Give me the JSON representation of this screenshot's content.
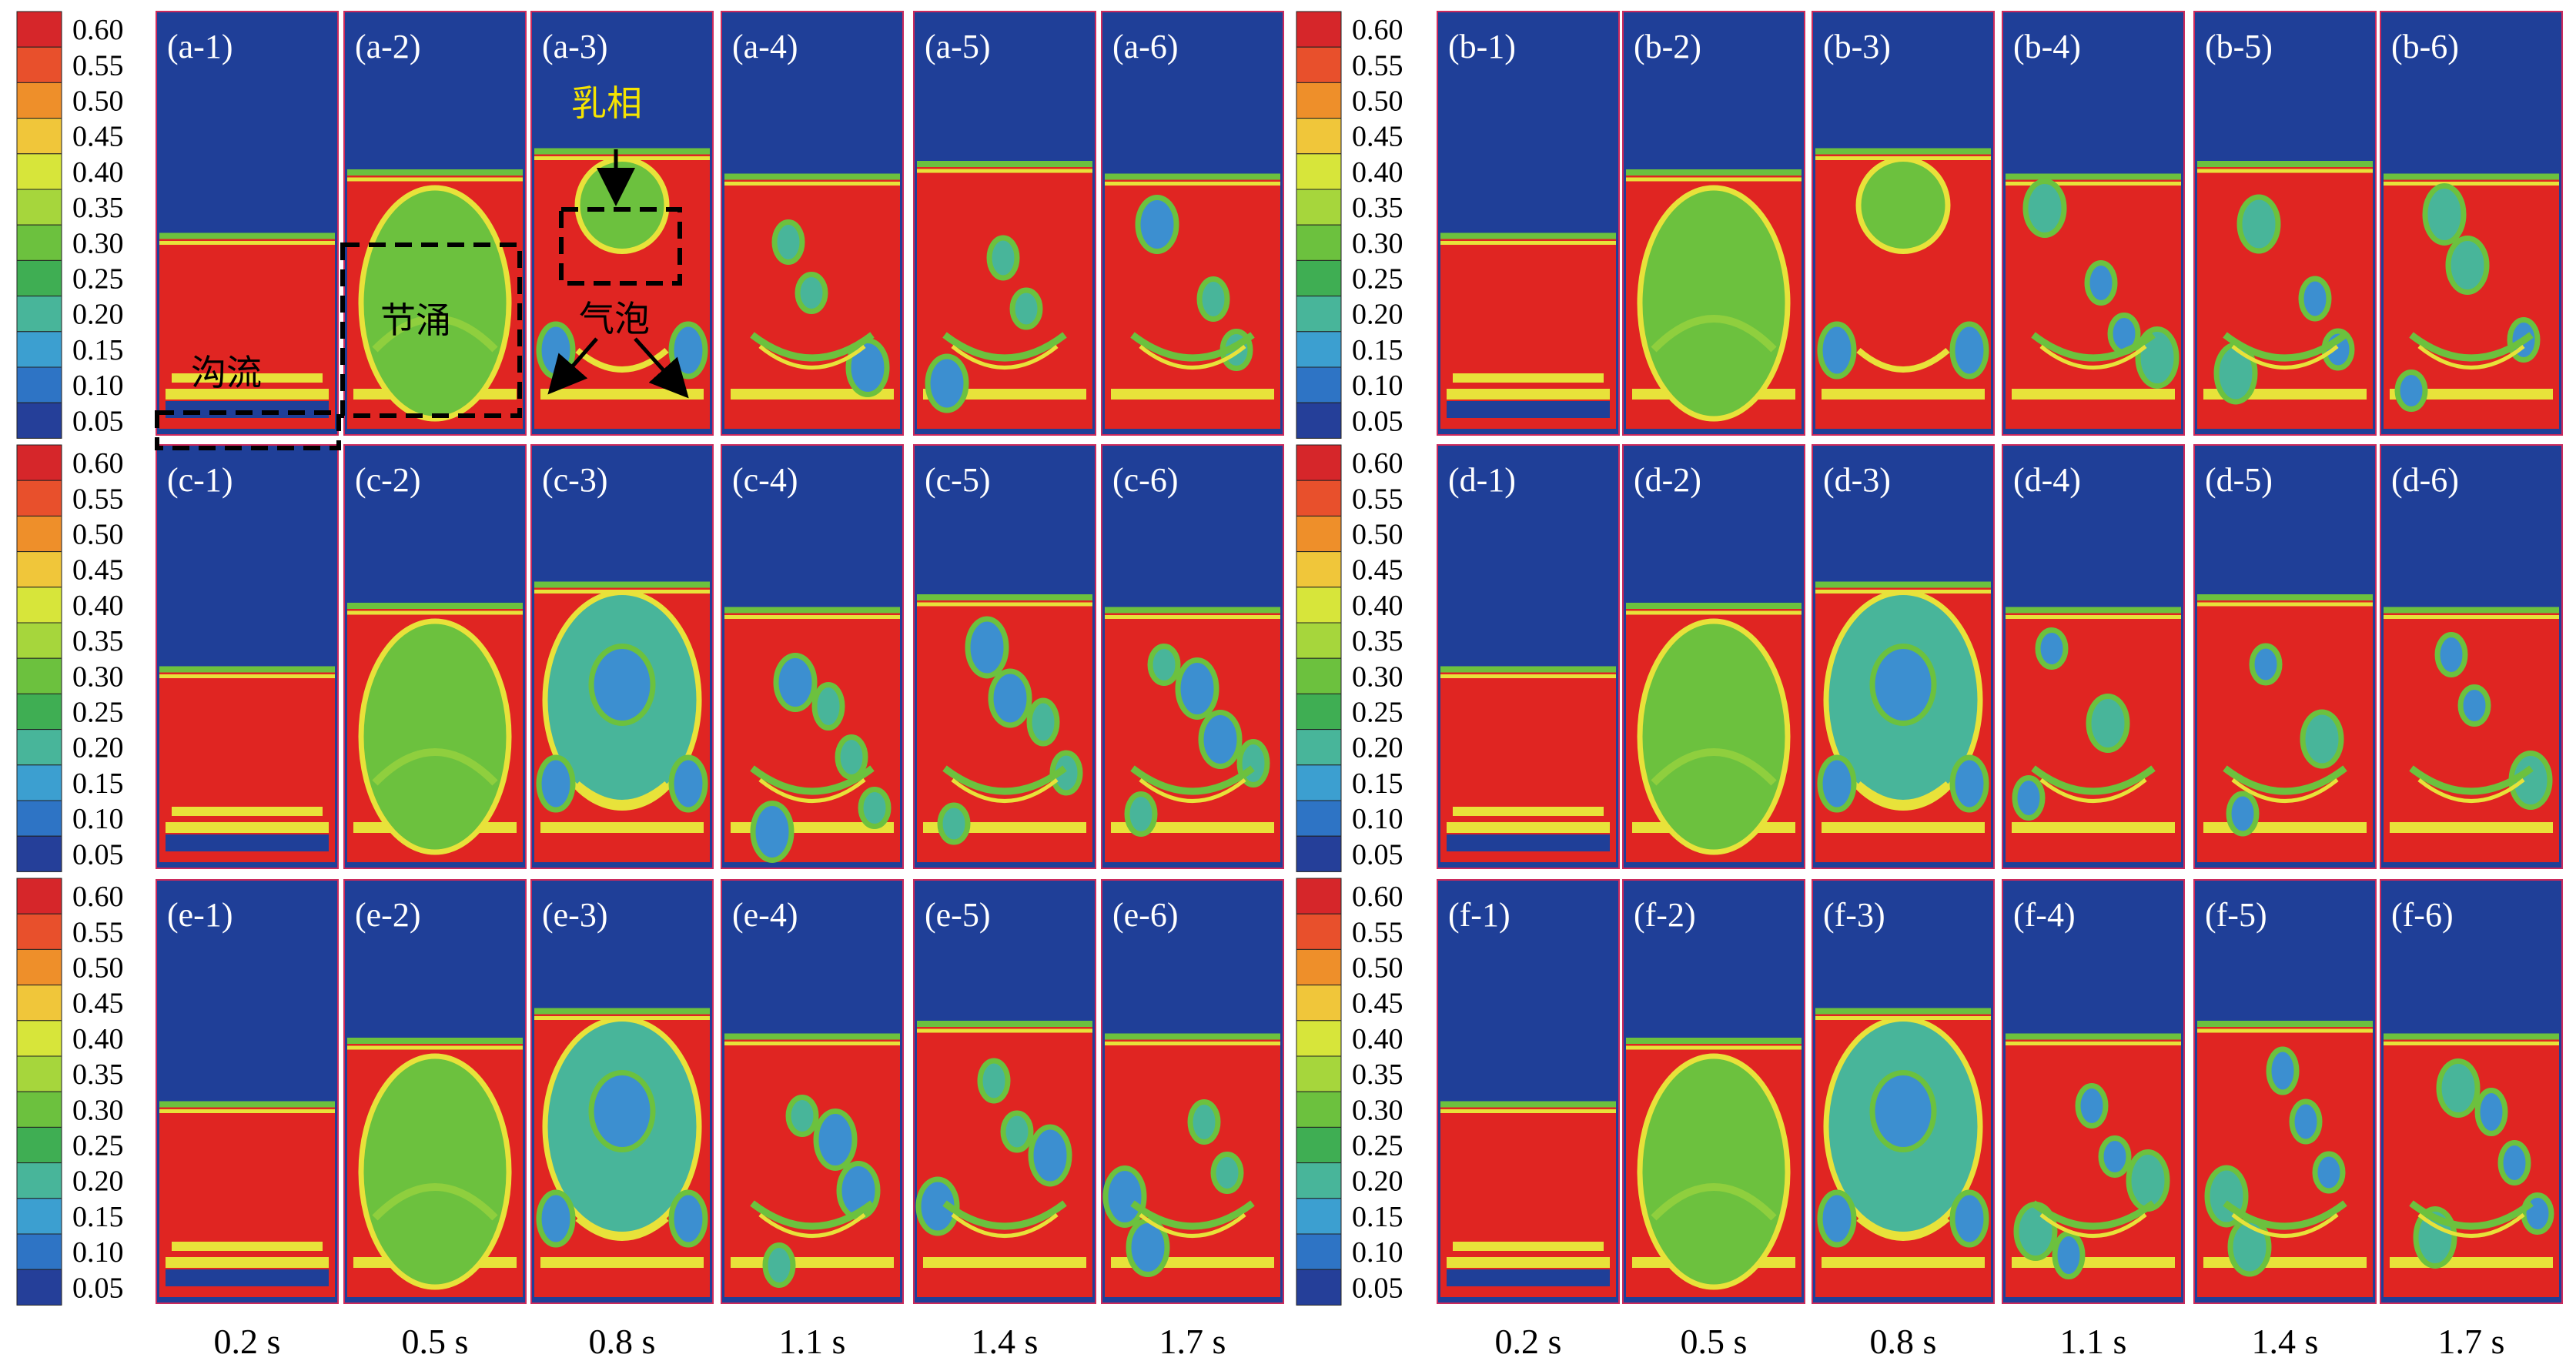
{
  "colorbar": {
    "ticks": [
      "0.60",
      "0.55",
      "0.50",
      "0.45",
      "0.40",
      "0.35",
      "0.30",
      "0.25",
      "0.20",
      "0.15",
      "0.10",
      "0.05"
    ],
    "colors": [
      "#d6262a",
      "#e8502c",
      "#ee8f2a",
      "#f0c63a",
      "#d7e53a",
      "#a6d63c",
      "#6cc13e",
      "#3fae53",
      "#48b59a",
      "#3c9fd0",
      "#2e74c5",
      "#253f99"
    ]
  },
  "groups": [
    {
      "id": "a",
      "panels": [
        "(a-1)",
        "(a-2)",
        "(a-3)",
        "(a-4)",
        "(a-5)",
        "(a-6)"
      ]
    },
    {
      "id": "b",
      "panels": [
        "(b-1)",
        "(b-2)",
        "(b-3)",
        "(b-4)",
        "(b-5)",
        "(b-6)"
      ]
    },
    {
      "id": "c",
      "panels": [
        "(c-1)",
        "(c-2)",
        "(c-3)",
        "(c-4)",
        "(c-5)",
        "(c-6)"
      ]
    },
    {
      "id": "d",
      "panels": [
        "(d-1)",
        "(d-2)",
        "(d-3)",
        "(d-4)",
        "(d-5)",
        "(d-6)"
      ]
    },
    {
      "id": "e",
      "panels": [
        "(e-1)",
        "(e-2)",
        "(e-3)",
        "(e-4)",
        "(e-5)",
        "(e-6)"
      ]
    },
    {
      "id": "f",
      "panels": [
        "(f-1)",
        "(f-2)",
        "(f-3)",
        "(f-4)",
        "(f-5)",
        "(f-6)"
      ]
    }
  ],
  "times": [
    "0.2 s",
    "0.5 s",
    "0.8 s",
    "1.1 s",
    "1.4 s",
    "1.7 s"
  ],
  "annotations": {
    "channeling": "沟流",
    "slugging": "节涌",
    "emulsion": "乳相",
    "bubble": "气泡"
  },
  "palette": {
    "gas": "#1f3f98",
    "dense": "#e02522",
    "mid": "#6cc13e",
    "light": "#48b59a",
    "low": "#3c8fd0",
    "yellow": "#e8e23a",
    "frame": "#cc2a5c",
    "annotation_yellow": "#f5e400"
  }
}
